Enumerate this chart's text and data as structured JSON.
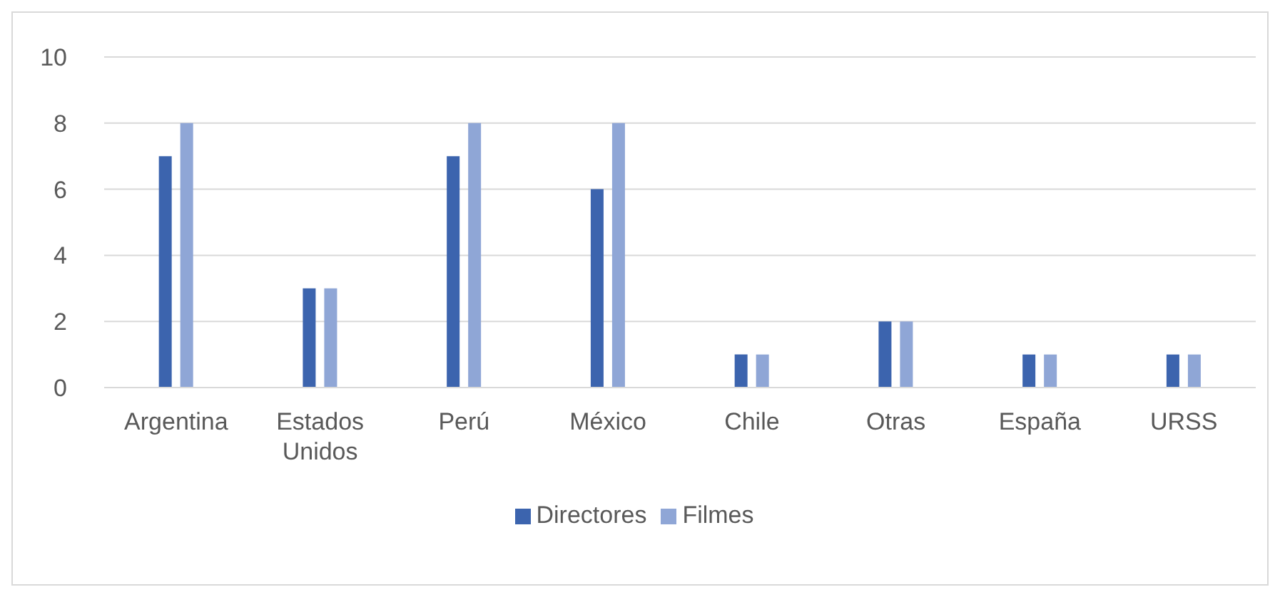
{
  "chart_data": {
    "type": "bar",
    "categories": [
      "Argentina",
      "Estados Unidos",
      "Perú",
      "México",
      "Chile",
      "Otras",
      "España",
      "URSS"
    ],
    "series": [
      {
        "name": "Directores",
        "color": "#3c64ae",
        "values": [
          7,
          3,
          7,
          6,
          1,
          2,
          1,
          1
        ]
      },
      {
        "name": "Filmes",
        "color": "#8fa6d6",
        "values": [
          8,
          3,
          8,
          8,
          1,
          2,
          1,
          1
        ]
      }
    ],
    "ylim": [
      0,
      10
    ],
    "yticks": [
      0,
      2,
      4,
      6,
      8,
      10
    ],
    "grid": "y",
    "legend": "bottom"
  }
}
